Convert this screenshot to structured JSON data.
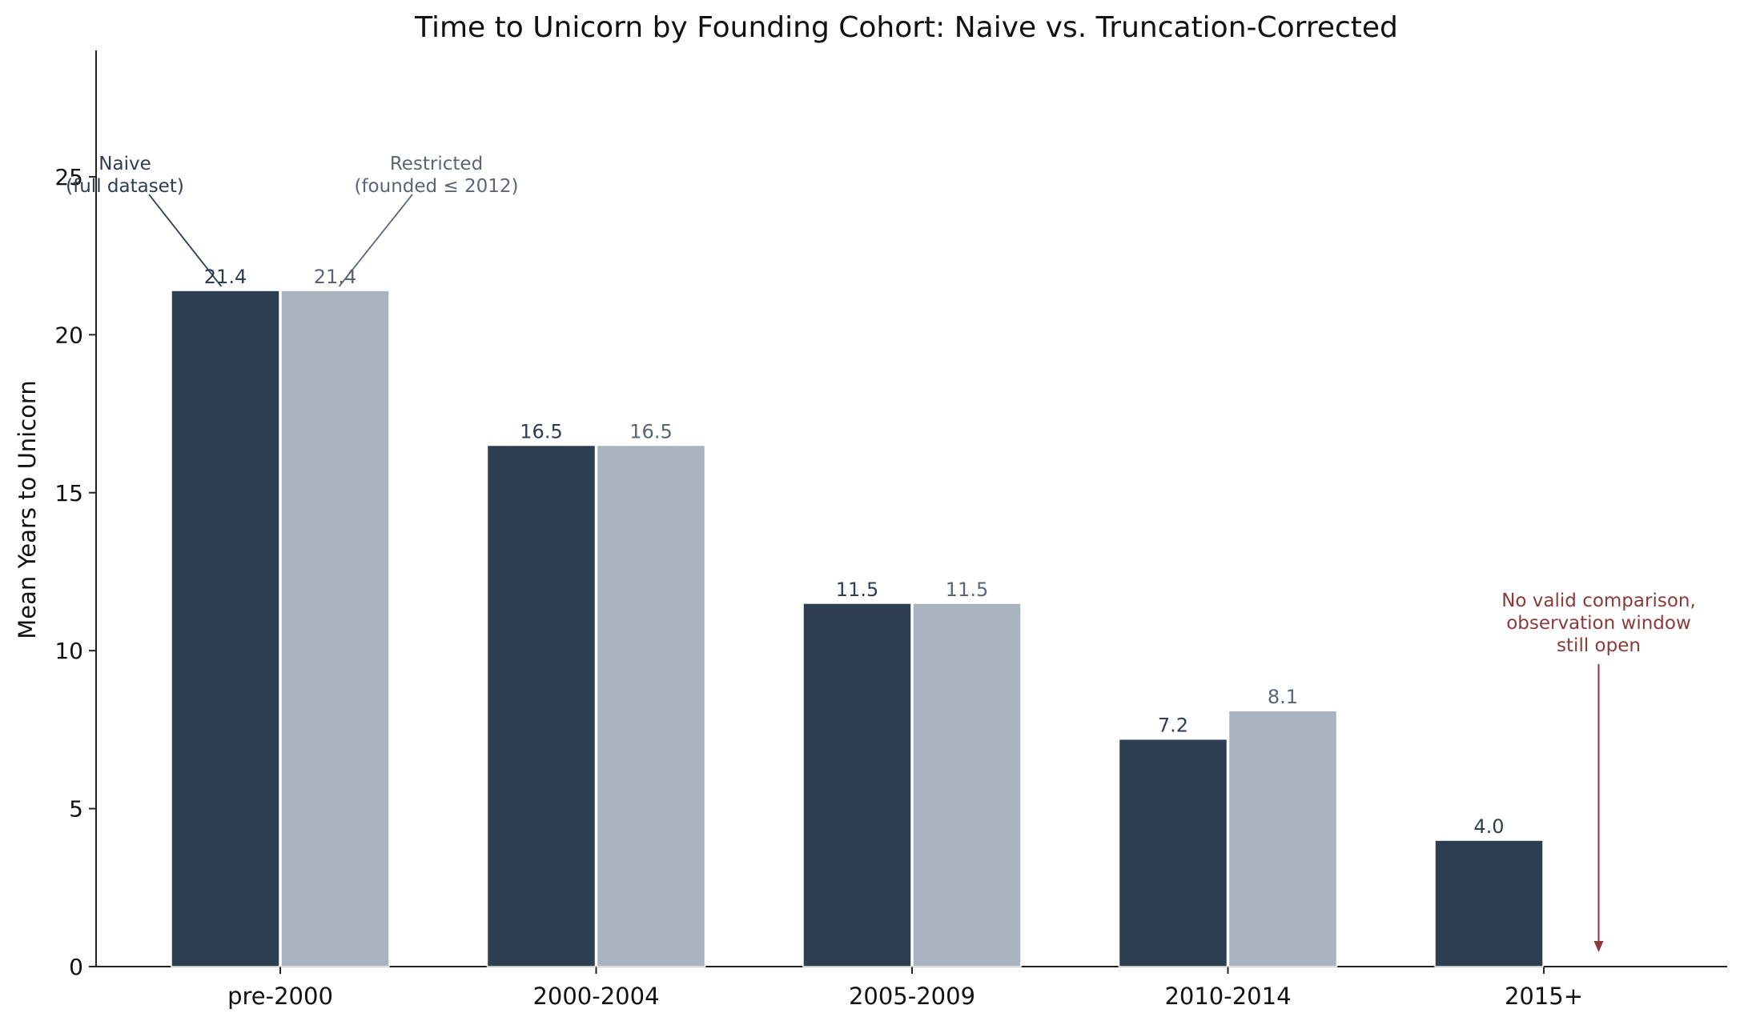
{
  "chart_data": {
    "type": "bar",
    "title": "Time to Unicorn by Founding Cohort: Naive vs. Truncation-Corrected",
    "xlabel": "",
    "ylabel": "Mean Years to Unicorn",
    "ylim": [
      0,
      29
    ],
    "yticks": [
      0,
      5,
      10,
      15,
      20,
      25
    ],
    "grid": false,
    "categories": [
      "pre-2000",
      "2000-2004",
      "2005-2009",
      "2010-2014",
      "2015+"
    ],
    "series": [
      {
        "key": "naive",
        "values": [
          21.4,
          16.5,
          11.5,
          7.2,
          4.0
        ],
        "labels": [
          "21.4",
          "16.5",
          "11.5",
          "7.2",
          "4.0"
        ],
        "color": "#2d3e50",
        "label_color": "#2d3e50"
      },
      {
        "key": "restricted",
        "values": [
          21.4,
          16.5,
          11.5,
          8.1,
          null
        ],
        "labels": [
          "21.4",
          "16.5",
          "11.5",
          "8.1",
          ""
        ],
        "color": "#a9b3bf",
        "label_color": "#5a6676"
      }
    ],
    "annotations": {
      "naive": {
        "lines": [
          "Naive",
          "(full dataset)"
        ],
        "color": "#2d3e50"
      },
      "restricted": {
        "lines": [
          "Restricted",
          "(founded ≤ 2012)"
        ],
        "color": "#5a6676"
      },
      "no_comparison": {
        "lines": [
          "No valid comparison,",
          "observation window",
          "still open"
        ],
        "color": "#8b3a3a"
      }
    }
  }
}
